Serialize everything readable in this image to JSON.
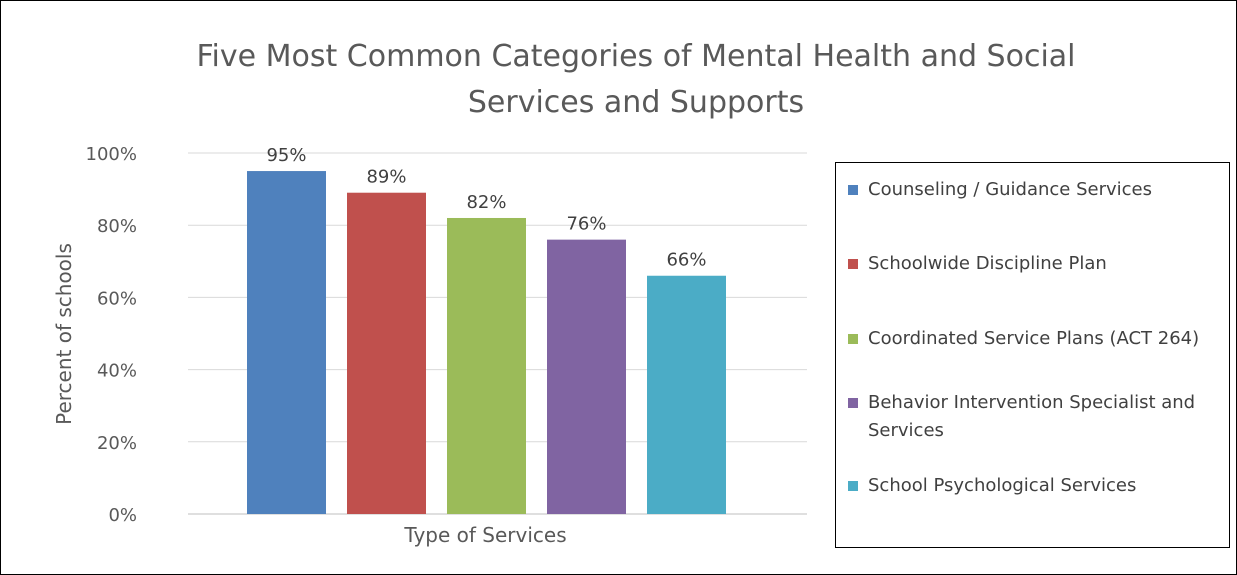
{
  "chart_data": {
    "type": "bar",
    "title_lines": [
      "Five Most Common Categories of Mental Health and Social",
      "Services and Supports"
    ],
    "xlabel": "Type of Services",
    "ylabel": "Percent of schools",
    "ylim": [
      0,
      100
    ],
    "y_ticks": [
      "0%",
      "20%",
      "40%",
      "60%",
      "80%",
      "100%"
    ],
    "grid": true,
    "legend_position": "right",
    "series": [
      {
        "name": "Counseling / Guidance Services",
        "value": 95,
        "label": "95%",
        "color": "#4F81BD"
      },
      {
        "name": "Schoolwide Discipline Plan",
        "value": 89,
        "label": "89%",
        "color": "#C0504D"
      },
      {
        "name": "Coordinated Service Plans (ACT 264)",
        "value": 82,
        "label": "82%",
        "color": "#9BBB59"
      },
      {
        "name": "Behavior Intervention Specialist and Services",
        "value": 76,
        "label": "76%",
        "color": "#8064A2"
      },
      {
        "name": "School Psychological Services",
        "value": 66,
        "label": "66%",
        "color": "#4BACC6"
      }
    ]
  }
}
